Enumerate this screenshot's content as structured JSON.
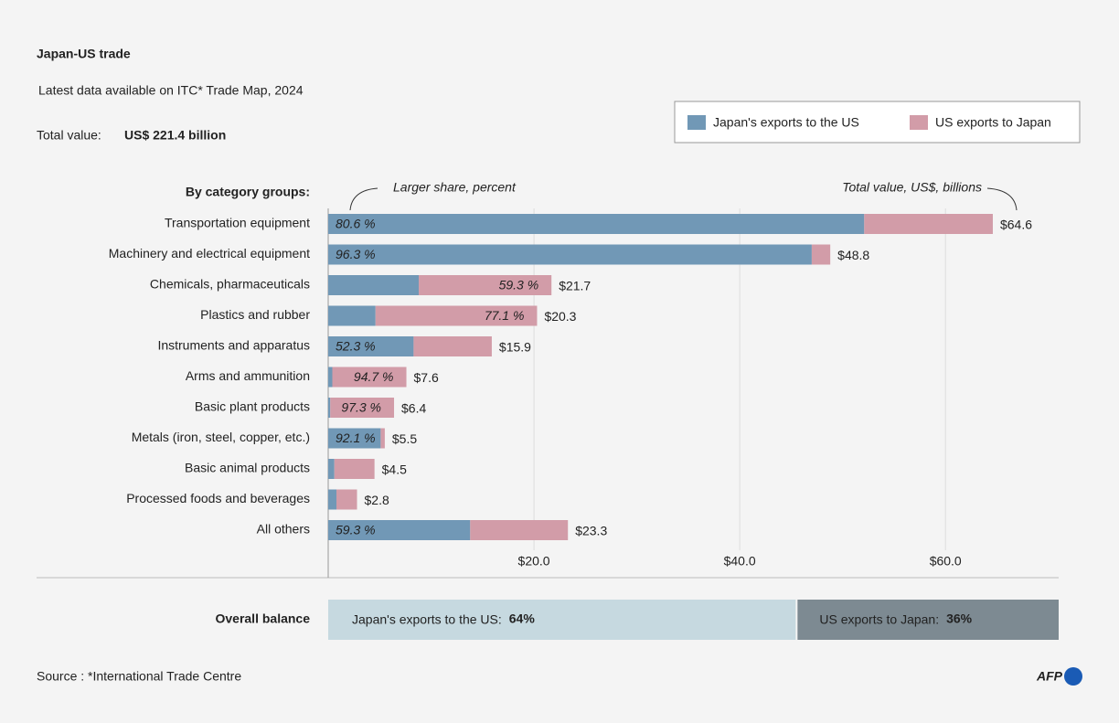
{
  "chart_data": {
    "type": "stacked-bar",
    "title": "Japan-US trade",
    "subtitle": "Latest data available on ITC* Trade Map, 2024",
    "total_caption": "Total value:",
    "total_value": "US$ 221.4 billion",
    "group_heading": "By category groups:",
    "share_note": "Larger share, percent",
    "total_note": "Total value, US$, billions",
    "categories": [
      "Transportation equipment",
      "Machinery and electrical equipment",
      "Chemicals, pharmaceuticals",
      "Plastics and rubber",
      "Instruments and apparatus",
      "Arms and ammunition",
      "Basic plant products",
      "Metals (iron, steel, copper, etc.)",
      "Basic animal products",
      "Processed foods and beverages",
      "All others"
    ],
    "series": [
      {
        "name": "Japan's exports to the US",
        "color": "#7198b6",
        "values": [
          52.1,
          47.0,
          8.8,
          4.6,
          8.3,
          0.4,
          0.2,
          5.1,
          0.6,
          0.8,
          13.8
        ]
      },
      {
        "name": "US exports to Japan",
        "color": "#d29ca8",
        "values": [
          12.5,
          1.8,
          12.9,
          15.7,
          7.6,
          7.2,
          6.2,
          0.4,
          3.9,
          2.0,
          9.5
        ]
      }
    ],
    "totals": [
      64.6,
      48.8,
      21.7,
      20.3,
      15.9,
      7.6,
      6.4,
      5.5,
      4.5,
      2.8,
      23.3
    ],
    "total_labels": [
      "$64.6",
      "$48.8",
      "$21.7",
      "$20.3",
      "$15.9",
      "$7.6",
      "$6.4",
      "$5.5",
      "$4.5",
      "$2.8",
      "$23.3"
    ],
    "shares": [
      80.6,
      96.3,
      59.3,
      77.1,
      52.3,
      94.7,
      97.3,
      92.1,
      null,
      null,
      59.3
    ],
    "share_labels": [
      "80.6 %",
      "96.3 %",
      "59.3 %",
      "77.1 %",
      "52.3 %",
      "94.7 %",
      "97.3 %",
      "92.1 %",
      null,
      null,
      "59.3 %"
    ],
    "xlim": [
      0,
      71
    ],
    "xticks": [
      {
        "value": 20,
        "label": "$20.0"
      },
      {
        "value": 40,
        "label": "$40.0"
      },
      {
        "value": 60,
        "label": "$60.0"
      }
    ],
    "grid": true
  },
  "balance": {
    "title": "Overall balance",
    "segments": [
      {
        "label": "Japan's exports to the US:",
        "value": 64,
        "value_label": "64%",
        "color": "#c6d9e0"
      },
      {
        "label": "US exports to Japan:",
        "value": 36,
        "value_label": "36%",
        "color": "#7d8a92"
      }
    ]
  },
  "source": "Source : *International Trade Centre",
  "logo": "AFP"
}
